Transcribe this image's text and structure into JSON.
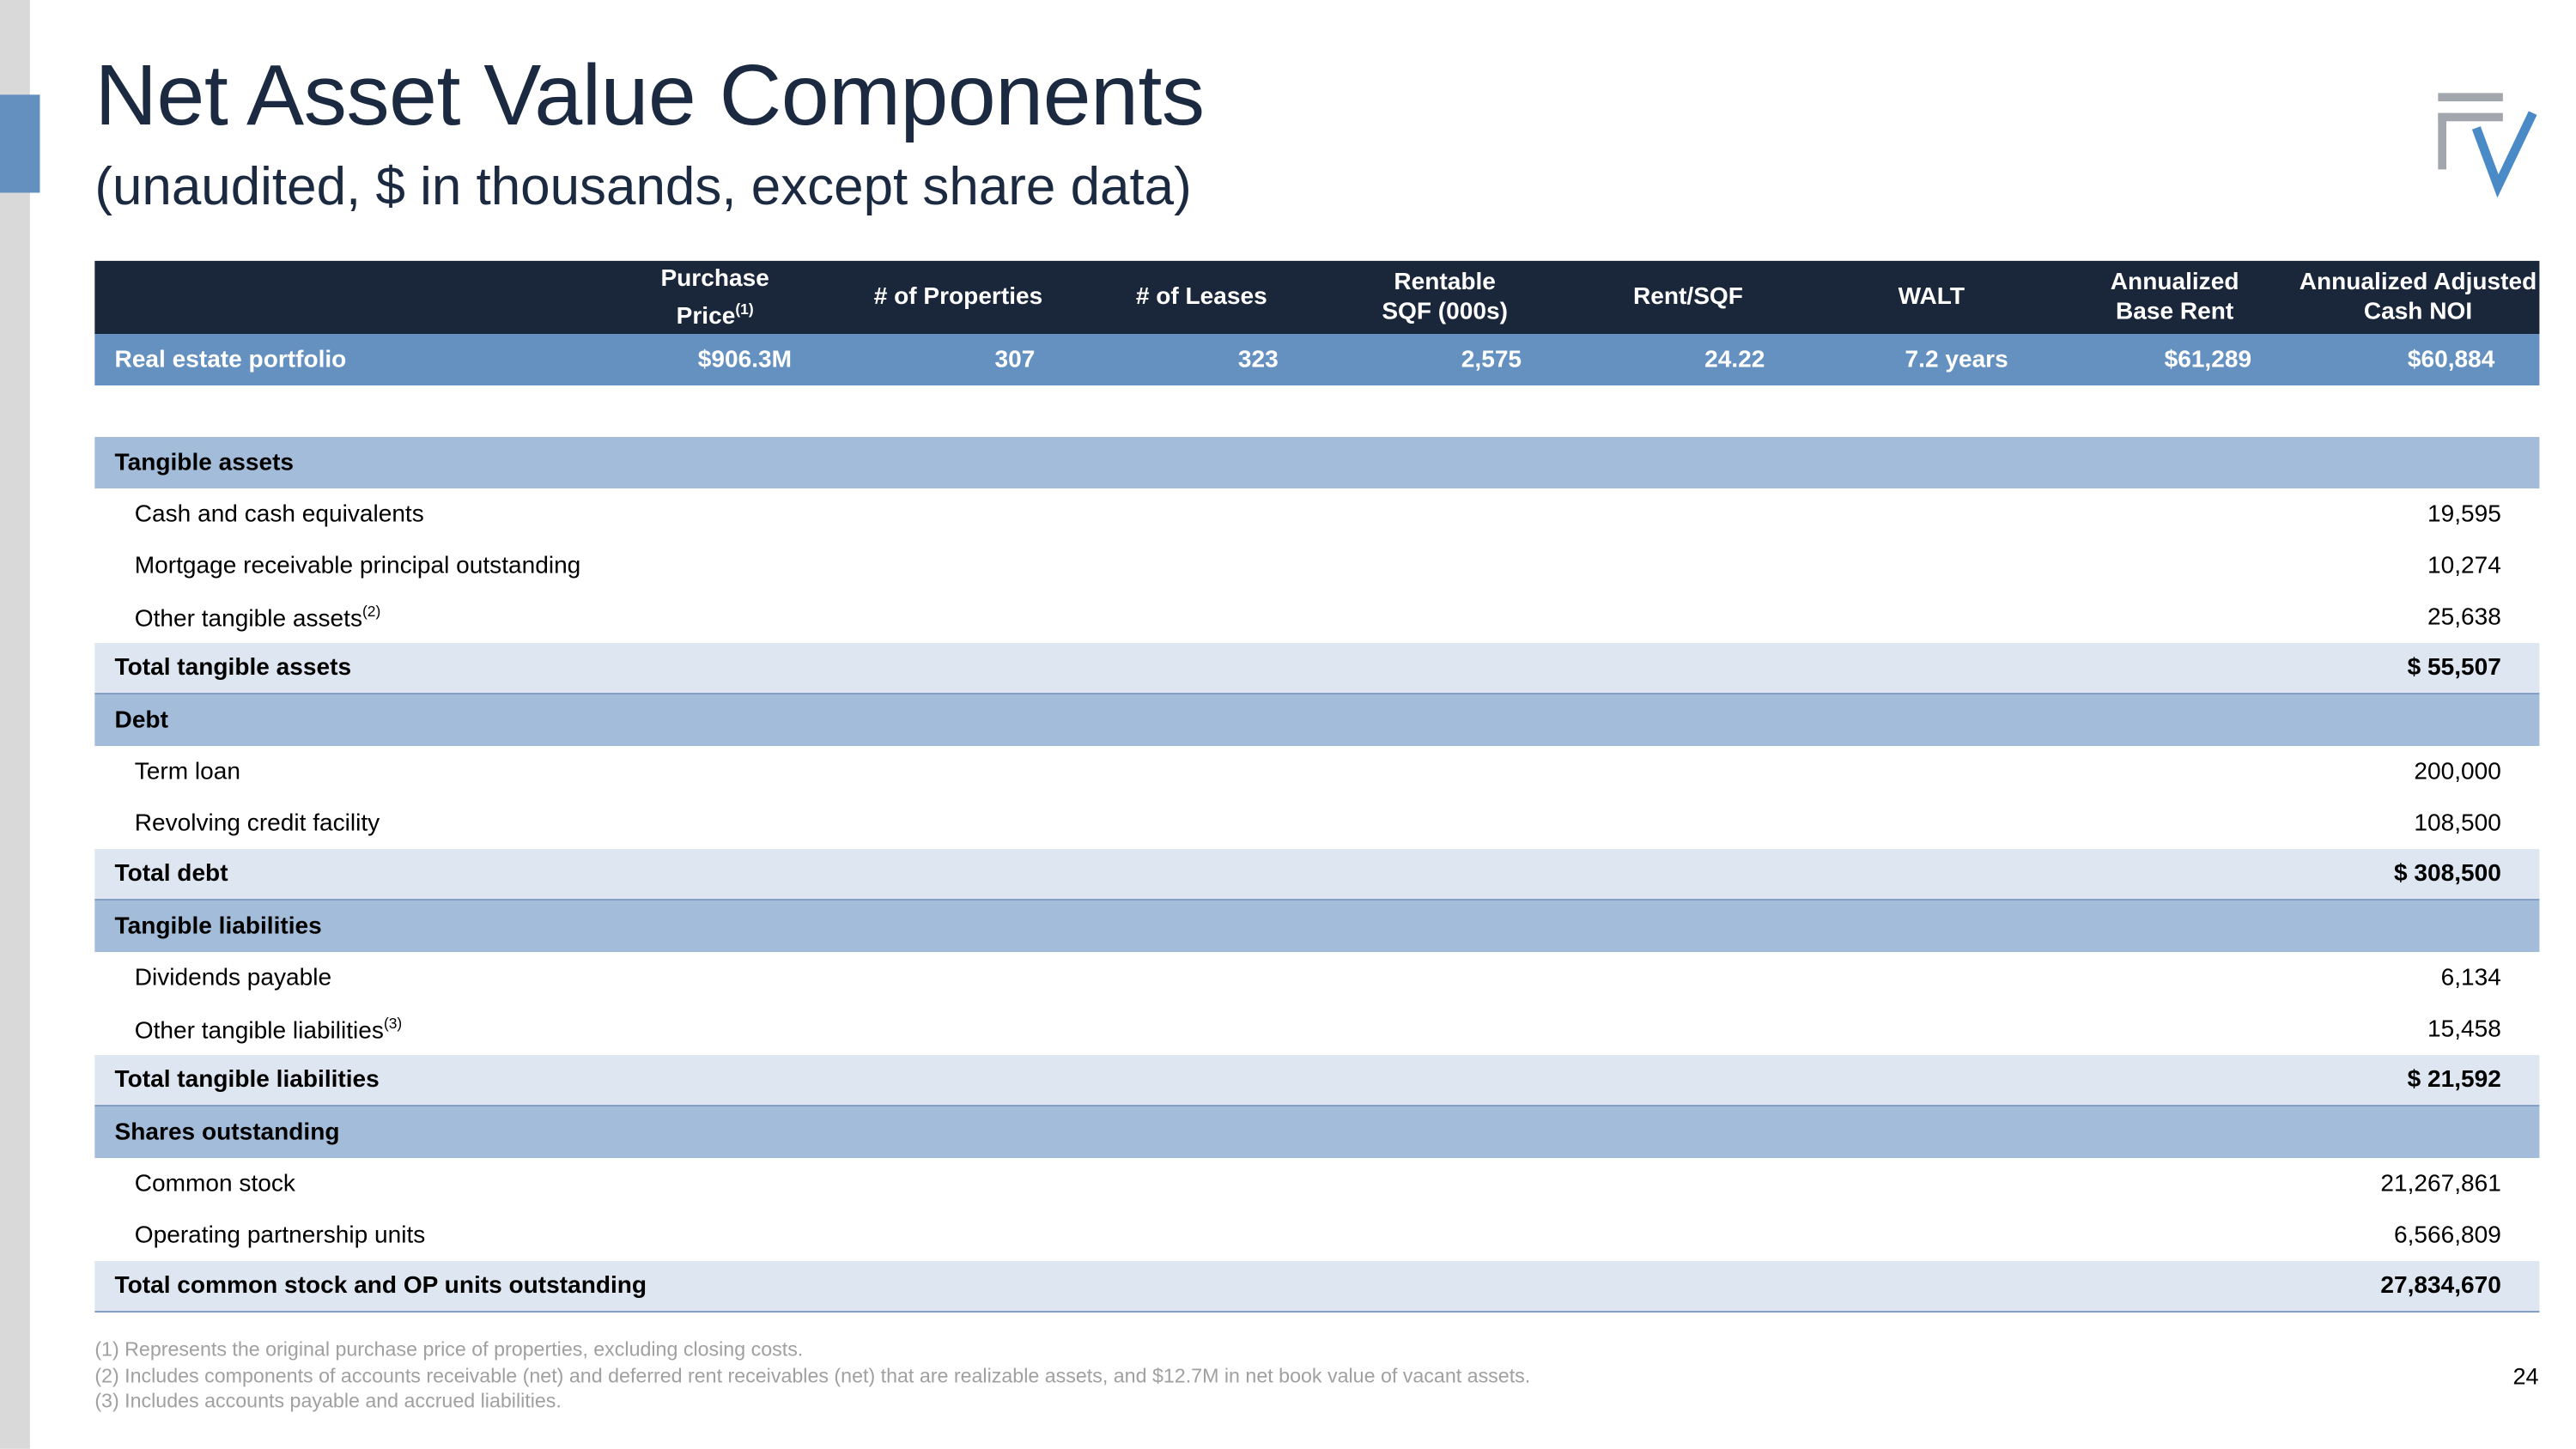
{
  "title": "Net Asset Value Components",
  "subtitle": "(unaudited, $ in thousands, except share data)",
  "logo": {
    "icon": "fv-logo",
    "colors": {
      "gray": "#a2a6ad",
      "blue": "#4a8bc7"
    }
  },
  "summary": {
    "headers": [
      "Purchase Price",
      "# of Properties",
      "# of Leases",
      "Rentable SQF (000s)",
      "Rent/SQF",
      "WALT",
      "Annualized Base Rent",
      "Annualized Adjusted Cash NOI"
    ],
    "header_lines": [
      [
        "Purchase",
        "Price"
      ],
      [
        "# of Properties"
      ],
      [
        "# of Leases"
      ],
      [
        "Rentable",
        "SQF (000s)"
      ],
      [
        "Rent/SQF"
      ],
      [
        "WALT"
      ],
      [
        "Annualized",
        "Base Rent"
      ],
      [
        "Annualized Adjusted",
        "Cash NOI"
      ]
    ],
    "purchase_price_footnote": "(1)",
    "row": {
      "label": "Real estate portfolio",
      "values": [
        "$906.3M",
        "307",
        "323",
        "2,575",
        "24.22",
        "7.2 years",
        "$61,289",
        "$60,884"
      ]
    }
  },
  "nav_table": [
    {
      "type": "section",
      "label": "Tangible assets",
      "value": ""
    },
    {
      "type": "item",
      "label": "Cash and cash equivalents",
      "value": "19,595"
    },
    {
      "type": "item",
      "label": "Mortgage receivable principal outstanding",
      "value": "10,274"
    },
    {
      "type": "item",
      "label": "Other tangible assets",
      "sup": "(2)",
      "value": "25,638"
    },
    {
      "type": "total",
      "label": "Total tangible assets",
      "value": "$ 55,507"
    },
    {
      "type": "section",
      "label": "Debt",
      "value": ""
    },
    {
      "type": "item",
      "label": "Term loan",
      "value": "200,000"
    },
    {
      "type": "item",
      "label": "Revolving credit facility",
      "value": "108,500"
    },
    {
      "type": "total",
      "label": "Total debt",
      "value": "$ 308,500"
    },
    {
      "type": "section",
      "label": "Tangible liabilities",
      "value": ""
    },
    {
      "type": "item",
      "label": "Dividends payable",
      "value": "6,134"
    },
    {
      "type": "item",
      "label": "Other tangible liabilities",
      "sup": "(3)",
      "value": "15,458"
    },
    {
      "type": "total",
      "label": "Total tangible liabilities",
      "value": "$ 21,592"
    },
    {
      "type": "section",
      "label": "Shares outstanding",
      "value": ""
    },
    {
      "type": "item",
      "label": "Common stock",
      "value": "21,267,861"
    },
    {
      "type": "item",
      "label": "Operating partnership units",
      "value": "6,566,809"
    },
    {
      "type": "total",
      "label": "Total common stock and OP units outstanding",
      "value": "27,834,670"
    }
  ],
  "footnotes": [
    "(1) Represents the original purchase price of properties, excluding closing costs.",
    "(2) Includes components of accounts receivable (net) and deferred rent receivables (net) that are realizable assets, and $12.7M in net book value of vacant assets.",
    "(3) Includes accounts payable and accrued liabilities."
  ],
  "page_number": "24",
  "colors": {
    "header_bg": "#1a2639",
    "portfolio_row": "#6591c1",
    "section_row": "#a3bcd9",
    "total_row": "#dde6f1",
    "accent_tab": "#6490c0"
  }
}
